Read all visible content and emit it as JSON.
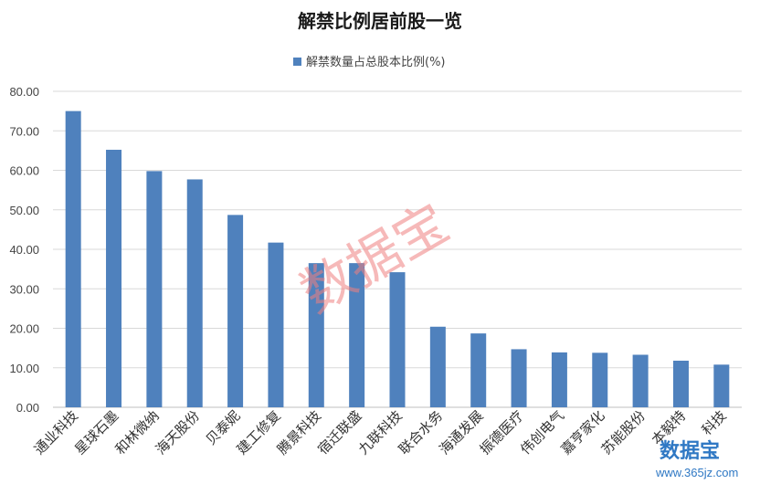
{
  "chart_data": {
    "type": "bar",
    "title": "解禁比例居前股一览",
    "series": [
      {
        "name": "解禁数量占总股本比例(%)",
        "values": [
          75.0,
          65.2,
          59.8,
          57.7,
          48.7,
          41.7,
          36.5,
          36.5,
          34.2,
          20.4,
          18.7,
          14.7,
          13.9,
          13.8,
          13.3,
          11.8,
          10.8
        ]
      }
    ],
    "categories": [
      "通业科技",
      "星球石墨",
      "和林微纳",
      "海天股份",
      "贝泰妮",
      "建工修复",
      "腾景科技",
      "宿迁联盛",
      "九联科技",
      "联合水务",
      "海通发展",
      "振德医疗",
      "伟创电气",
      "嘉亨家化",
      "苏能股份",
      "本毅特",
      "科技"
    ],
    "ylim": [
      0,
      80
    ],
    "yticks": [
      "0.00",
      "10.00",
      "20.00",
      "30.00",
      "40.00",
      "50.00",
      "60.00",
      "70.00",
      "80.00"
    ],
    "xlabel": "",
    "ylabel": "",
    "legend_position": "top",
    "grid": true,
    "bar_color": "#4f81bd"
  },
  "watermark": {
    "text": "数据宝"
  },
  "logo": {
    "text": "数据宝",
    "url": "www.365jz.com"
  }
}
